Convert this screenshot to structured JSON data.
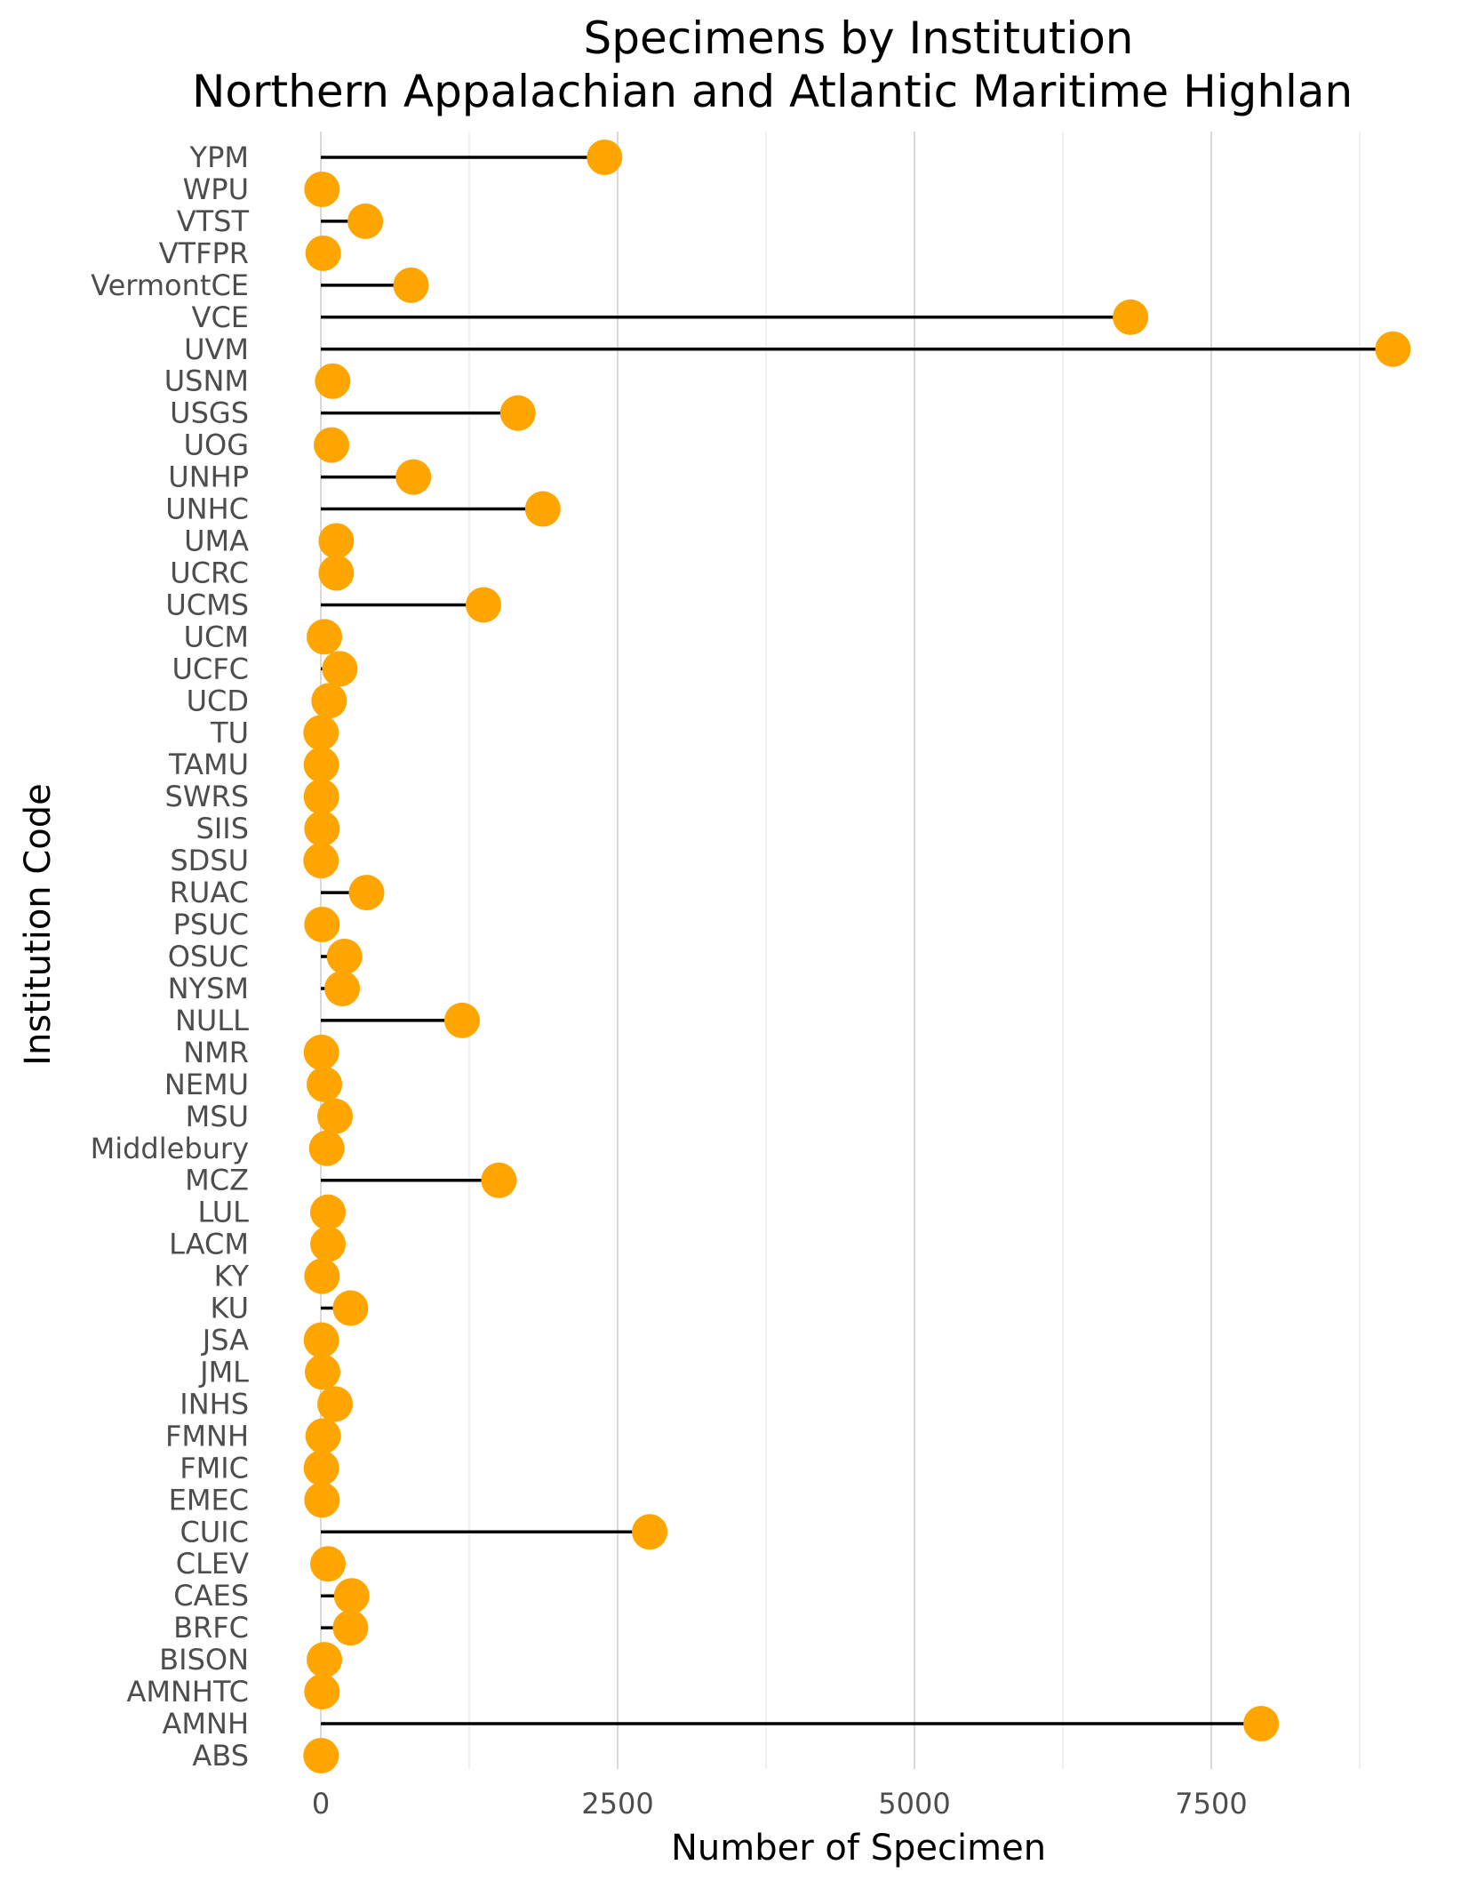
{
  "chart_data": {
    "type": "lollipop",
    "title": "Specimens by Institution",
    "subtitle": "Northern Appalachian and Atlantic Maritime Highlan",
    "xlabel": "Number of Specimen",
    "ylabel": "Institution Code",
    "xlim": [
      -300,
      9200
    ],
    "xticks": [
      0,
      2500,
      5000,
      7500
    ],
    "xtick_labels": [
      "0",
      "2500",
      "5000",
      "7500"
    ],
    "grid": true,
    "point_color": "#FFA500",
    "categories": [
      "YPM",
      "WPU",
      "VTST",
      "VTFPR",
      "VermontCE",
      "VCE",
      "UVM",
      "USNM",
      "USGS",
      "UOG",
      "UNHP",
      "UNHC",
      "UMA",
      "UCRC",
      "UCMS",
      "UCM",
      "UCFC",
      "UCD",
      "TU",
      "TAMU",
      "SWRS",
      "SIIS",
      "SDSU",
      "RUAC",
      "PSUC",
      "OSUC",
      "NYSM",
      "NULL",
      "NMR",
      "NEMU",
      "MSU",
      "Middlebury",
      "MCZ",
      "LUL",
      "LACM",
      "KY",
      "KU",
      "JSA",
      "JML",
      "INHS",
      "FMNH",
      "FMIC",
      "EMEC",
      "CUIC",
      "CLEV",
      "CAES",
      "BRFC",
      "BISON",
      "AMNHTC",
      "AMNH",
      "ABS"
    ],
    "values": [
      2390,
      10,
      375,
      20,
      760,
      6820,
      9030,
      100,
      1660,
      90,
      780,
      1870,
      130,
      130,
      1370,
      30,
      160,
      70,
      2,
      5,
      5,
      10,
      2,
      385,
      10,
      200,
      180,
      1190,
      5,
      30,
      120,
      50,
      1500,
      60,
      60,
      10,
      250,
      5,
      15,
      120,
      20,
      5,
      10,
      2770,
      60,
      260,
      250,
      30,
      10,
      7920,
      2
    ]
  }
}
